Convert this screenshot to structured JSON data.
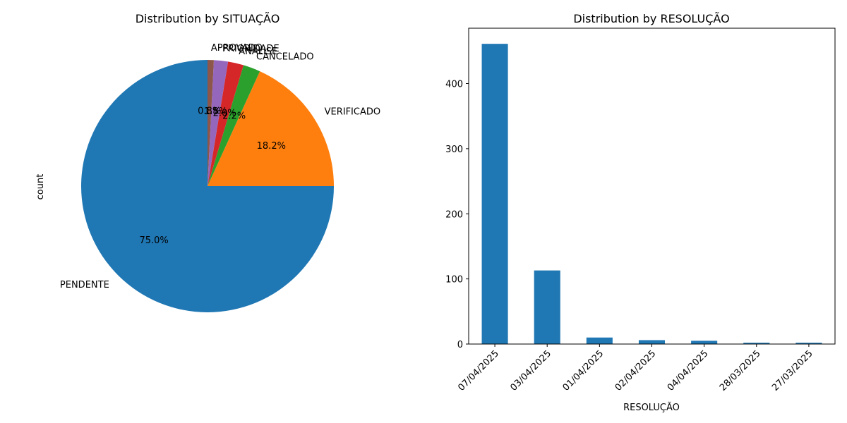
{
  "chart_data": [
    {
      "type": "pie",
      "title": "Distribution by SITUAÇÃO",
      "ylabel": "count",
      "slices": [
        {
          "label": "PENDENTE",
          "value": 75.0,
          "pct_label": "75.0%",
          "color": "#1f77b4"
        },
        {
          "label": "VERIFICADO",
          "value": 18.2,
          "pct_label": "18.2%",
          "color": "#ff7f0e"
        },
        {
          "label": "CANCELADO",
          "value": 2.2,
          "pct_label": "2.2%",
          "color": "#2ca02c"
        },
        {
          "label": "ANÁLISE",
          "value": 2.0,
          "pct_label": "2.0%",
          "color": "#d62728"
        },
        {
          "label": "PRIORIDADE",
          "value": 1.8,
          "pct_label": "1.8%",
          "color": "#9467bd"
        },
        {
          "label": "APROVADO",
          "value": 0.8,
          "pct_label": "0.8%",
          "color": "#8c564b"
        }
      ]
    },
    {
      "type": "bar",
      "title": "Distribution by RESOLUÇÃO",
      "xlabel": "RESOLUÇÃO",
      "ylabel": "",
      "categories": [
        "07/04/2025",
        "03/04/2025",
        "01/04/2025",
        "02/04/2025",
        "04/04/2025",
        "28/03/2025",
        "27/03/2025"
      ],
      "values": [
        461,
        113,
        10,
        6,
        5,
        2,
        2
      ],
      "ylim": [
        0,
        485
      ],
      "yticks": [
        0,
        100,
        200,
        300,
        400
      ],
      "color": "#1f77b4"
    }
  ]
}
